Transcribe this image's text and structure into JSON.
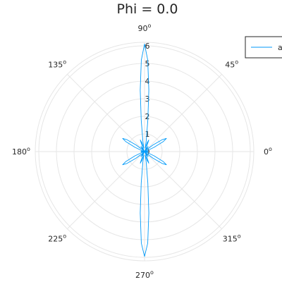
{
  "chart_data": {
    "type": "polar-line",
    "title": "Phi = 0.0",
    "theta_ticks": [
      {
        "deg": 0,
        "label": "0"
      },
      {
        "deg": 45,
        "label": "45"
      },
      {
        "deg": 90,
        "label": "90"
      },
      {
        "deg": 135,
        "label": "135"
      },
      {
        "deg": 180,
        "label": "180"
      },
      {
        "deg": 225,
        "label": "225"
      },
      {
        "deg": 270,
        "label": "270"
      },
      {
        "deg": 315,
        "label": "315"
      }
    ],
    "degree_symbol": "o",
    "r_ticks": [
      0,
      1,
      2,
      3,
      4,
      5,
      6
    ],
    "rlim": [
      0,
      6.2
    ],
    "grid": true,
    "legend": {
      "placement": "top-right",
      "label": "a"
    },
    "series": [
      {
        "name": "a",
        "color": "#009af9",
        "points": [
          [
            0,
            0.0
          ],
          [
            4,
            0.1
          ],
          [
            8,
            0.2
          ],
          [
            12,
            0.1
          ],
          [
            16,
            0.0
          ],
          [
            20,
            0.15
          ],
          [
            24,
            0.6
          ],
          [
            28,
            1.2
          ],
          [
            31,
            1.45
          ],
          [
            34,
            1.2
          ],
          [
            38,
            0.6
          ],
          [
            42,
            0.15
          ],
          [
            46,
            0.0
          ],
          [
            50,
            0.2
          ],
          [
            54,
            0.35
          ],
          [
            58,
            0.2
          ],
          [
            62,
            0.05
          ],
          [
            66,
            0.3
          ],
          [
            70,
            0.7
          ],
          [
            74,
            0.5
          ],
          [
            78,
            0.2
          ],
          [
            81,
            0.6
          ],
          [
            84,
            1.8
          ],
          [
            86,
            3.5
          ],
          [
            88,
            5.2
          ],
          [
            90,
            6.1
          ],
          [
            92,
            5.2
          ],
          [
            94,
            3.5
          ],
          [
            96,
            1.8
          ],
          [
            99,
            0.6
          ],
          [
            102,
            0.2
          ],
          [
            106,
            0.5
          ],
          [
            110,
            0.7
          ],
          [
            114,
            0.3
          ],
          [
            118,
            0.05
          ],
          [
            122,
            0.2
          ],
          [
            126,
            0.35
          ],
          [
            130,
            0.2
          ],
          [
            134,
            0.0
          ],
          [
            138,
            0.15
          ],
          [
            142,
            0.6
          ],
          [
            146,
            1.2
          ],
          [
            149,
            1.45
          ],
          [
            152,
            1.2
          ],
          [
            156,
            0.6
          ],
          [
            160,
            0.15
          ],
          [
            164,
            0.0
          ],
          [
            168,
            0.1
          ],
          [
            172,
            0.2
          ],
          [
            176,
            0.1
          ],
          [
            180,
            0.0
          ],
          [
            184,
            0.1
          ],
          [
            188,
            0.2
          ],
          [
            192,
            0.1
          ],
          [
            196,
            0.0
          ],
          [
            200,
            0.15
          ],
          [
            204,
            0.6
          ],
          [
            208,
            1.2
          ],
          [
            211,
            1.45
          ],
          [
            214,
            1.2
          ],
          [
            218,
            0.6
          ],
          [
            222,
            0.15
          ],
          [
            226,
            0.0
          ],
          [
            230,
            0.2
          ],
          [
            234,
            0.35
          ],
          [
            238,
            0.2
          ],
          [
            242,
            0.05
          ],
          [
            246,
            0.3
          ],
          [
            250,
            0.7
          ],
          [
            254,
            0.5
          ],
          [
            258,
            0.2
          ],
          [
            261,
            0.6
          ],
          [
            264,
            1.8
          ],
          [
            266,
            3.5
          ],
          [
            268,
            5.2
          ],
          [
            270,
            5.95
          ],
          [
            272,
            5.2
          ],
          [
            274,
            3.5
          ],
          [
            276,
            1.8
          ],
          [
            279,
            0.6
          ],
          [
            282,
            0.2
          ],
          [
            286,
            0.5
          ],
          [
            290,
            0.7
          ],
          [
            294,
            0.3
          ],
          [
            298,
            0.05
          ],
          [
            302,
            0.2
          ],
          [
            306,
            0.35
          ],
          [
            310,
            0.2
          ],
          [
            314,
            0.0
          ],
          [
            318,
            0.15
          ],
          [
            322,
            0.6
          ],
          [
            326,
            1.2
          ],
          [
            329,
            1.45
          ],
          [
            332,
            1.2
          ],
          [
            336,
            0.6
          ],
          [
            340,
            0.15
          ],
          [
            344,
            0.0
          ],
          [
            348,
            0.1
          ],
          [
            352,
            0.2
          ],
          [
            356,
            0.1
          ],
          [
            360,
            0.0
          ]
        ]
      }
    ]
  }
}
